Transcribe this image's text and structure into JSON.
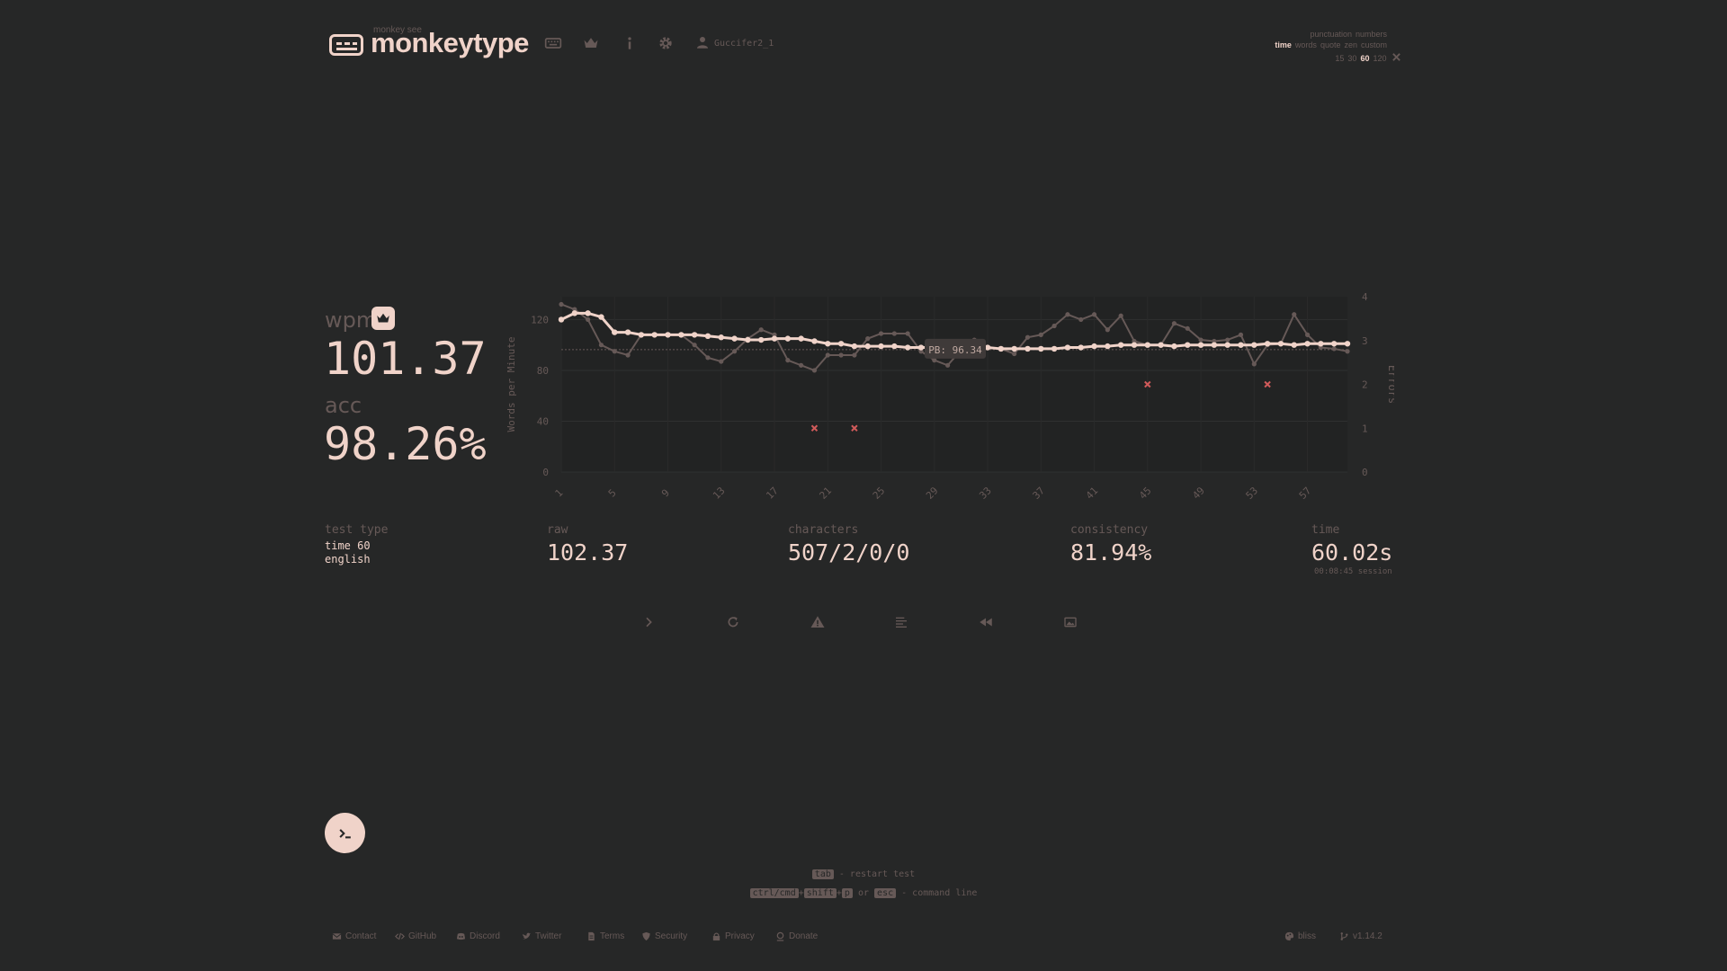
{
  "header": {
    "brand_small": "monkey see",
    "brand": "monkeytype",
    "user": "Guccifer2_1"
  },
  "test_config": {
    "row1": [
      "punctuation",
      "numbers"
    ],
    "row2": [
      "time",
      "words",
      "quote",
      "zen",
      "custom"
    ],
    "row2_active": "time",
    "row3": [
      "15",
      "30",
      "60",
      "120"
    ],
    "row3_active": "60"
  },
  "result": {
    "wpm_label": "wpm",
    "wpm": "101.37",
    "acc_label": "acc",
    "acc": "98.26%"
  },
  "stats": {
    "test_type_label": "test type",
    "test_type_line1": "time 60",
    "test_type_line2": "english",
    "raw_label": "raw",
    "raw": "102.37",
    "characters_label": "characters",
    "characters": "507/2/0/0",
    "consistency_label": "consistency",
    "consistency": "81.94%",
    "time_label": "time",
    "time": "60.02s",
    "session": "00:08:45 session"
  },
  "chart_data": {
    "type": "line",
    "ylabel": "Words per Minute",
    "y2label": "Errors",
    "ylim": [
      0,
      138
    ],
    "y2lim": [
      0,
      4
    ],
    "yticks": [
      "0",
      "40",
      "80",
      "120"
    ],
    "y2ticks": [
      "0",
      "1",
      "2",
      "3",
      "4"
    ],
    "xticks": [
      "1",
      "5",
      "9",
      "13",
      "17",
      "21",
      "25",
      "29",
      "33",
      "37",
      "41",
      "45",
      "49",
      "53",
      "57"
    ],
    "pb_label": "PB: 96.34",
    "pb_value": 96.34,
    "x": [
      1,
      2,
      3,
      4,
      5,
      6,
      7,
      8,
      9,
      10,
      11,
      12,
      13,
      14,
      15,
      16,
      17,
      18,
      19,
      20,
      21,
      22,
      23,
      24,
      25,
      26,
      27,
      28,
      29,
      30,
      31,
      32,
      33,
      34,
      35,
      36,
      37,
      38,
      39,
      40,
      41,
      42,
      43,
      44,
      45,
      46,
      47,
      48,
      49,
      50,
      51,
      52,
      53,
      54,
      55,
      56,
      57,
      58,
      59,
      60
    ],
    "series": [
      {
        "role": "wpm",
        "color": "#f0d3c9",
        "values": [
          120,
          125,
          125,
          122,
          110,
          110,
          108,
          108,
          108,
          108,
          108,
          107,
          106,
          105,
          104,
          104,
          105,
          105,
          105,
          103,
          101,
          101,
          99,
          99,
          99,
          99,
          98,
          98,
          98,
          98,
          98,
          98,
          98,
          97,
          97,
          97,
          97,
          97,
          98,
          98,
          99,
          99,
          100,
          100,
          100,
          100,
          99,
          100,
          100,
          100,
          100,
          100,
          100,
          101,
          101,
          100,
          101,
          101,
          101,
          101
        ]
      },
      {
        "role": "raw",
        "color": "#665957",
        "values": [
          132,
          128,
          120,
          100,
          95,
          92,
          108,
          108,
          108,
          108,
          100,
          90,
          87,
          95,
          105,
          112,
          108,
          88,
          84,
          80,
          92,
          92,
          92,
          105,
          109,
          109,
          109,
          95,
          88,
          84,
          96,
          104,
          98,
          97,
          93,
          106,
          108,
          115,
          124,
          120,
          124,
          112,
          123,
          103,
          100,
          100,
          117,
          113,
          104,
          103,
          104,
          108,
          85,
          100,
          101,
          124,
          108,
          98,
          97,
          95
        ]
      }
    ],
    "errors": [
      {
        "x": 20,
        "y": 1
      },
      {
        "x": 23,
        "y": 1
      },
      {
        "x": 45,
        "y": 2
      },
      {
        "x": 54,
        "y": 2
      }
    ]
  },
  "hints": {
    "tab_key": "tab",
    "tab_text": "- restart test",
    "key1": "ctrl/cmd",
    "plus": "+",
    "key2": "shift",
    "key3": "p",
    "or": "or",
    "key4": "esc",
    "cmd_text": "- command line"
  },
  "footer": {
    "contact": "Contact",
    "github": "GitHub",
    "discord": "Discord",
    "twitter": "Twitter",
    "terms": "Terms",
    "security": "Security",
    "privacy": "Privacy",
    "donate": "Donate",
    "theme": "bliss",
    "version": "v1.14.2"
  },
  "colors": {
    "background": "#262727",
    "text": "#f0d3c9",
    "sub": "#665957",
    "error": "#d05a5a"
  }
}
